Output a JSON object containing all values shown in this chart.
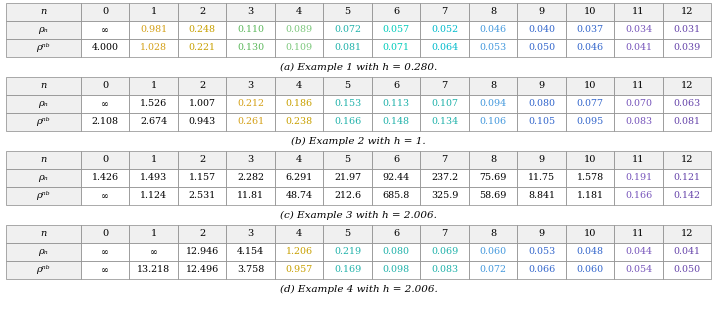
{
  "tables": [
    {
      "caption": "(a) Example 1 with h = 0.280.",
      "headers": [
        "n",
        "0",
        "1",
        "2",
        "3",
        "4",
        "5",
        "6",
        "7",
        "8",
        "9",
        "10",
        "11",
        "12"
      ],
      "rows": [
        {
          "label": "rho_n",
          "values": [
            "∞",
            "0.981",
            "0.248",
            "0.110",
            "0.089",
            "0.072",
            "0.057",
            "0.052",
            "0.046",
            "0.040",
            "0.037",
            "0.034",
            "0.031"
          ]
        },
        {
          "label": "rho_nb",
          "values": [
            "4.000",
            "1.028",
            "0.221",
            "0.130",
            "0.109",
            "0.081",
            "0.071",
            "0.064",
            "0.053",
            "0.050",
            "0.046",
            "0.041",
            "0.039"
          ]
        }
      ],
      "col_colors": [
        "#000000",
        "#D4A017",
        "#C8A000",
        "#5CB85C",
        "#7DC87D",
        "#20B2AA",
        "#00CCBB",
        "#00BBCC",
        "#4499DD",
        "#3366CC",
        "#3366CC",
        "#7755BB",
        "#6644AA"
      ]
    },
    {
      "caption": "(b) Example 2 with h = 1.",
      "headers": [
        "n",
        "0",
        "1",
        "2",
        "3",
        "4",
        "5",
        "6",
        "7",
        "8",
        "9",
        "10",
        "11",
        "12"
      ],
      "rows": [
        {
          "label": "rho_n",
          "values": [
            "∞",
            "1.526",
            "1.007",
            "0.212",
            "0.186",
            "0.153",
            "0.113",
            "0.107",
            "0.094",
            "0.080",
            "0.077",
            "0.070",
            "0.063"
          ]
        },
        {
          "label": "rho_nb",
          "values": [
            "2.108",
            "2.674",
            "0.943",
            "0.261",
            "0.238",
            "0.166",
            "0.148",
            "0.134",
            "0.106",
            "0.105",
            "0.095",
            "0.083",
            "0.081"
          ]
        }
      ],
      "col_colors": [
        "#000000",
        "#000000",
        "#000000",
        "#D4A017",
        "#C8A000",
        "#20B2AA",
        "#20B2AA",
        "#20B2AA",
        "#4499DD",
        "#3366CC",
        "#3366CC",
        "#7755BB",
        "#6644AA"
      ]
    },
    {
      "caption": "(c) Example 3 with h = 2.006.",
      "headers": [
        "n",
        "0",
        "1",
        "2",
        "3",
        "4",
        "5",
        "6",
        "7",
        "8",
        "9",
        "10",
        "11",
        "12"
      ],
      "rows": [
        {
          "label": "rho_n",
          "values": [
            "1.426",
            "1.493",
            "1.157",
            "2.282",
            "6.291",
            "21.97",
            "92.44",
            "237.2",
            "75.69",
            "11.75",
            "1.578",
            "0.191",
            "0.121"
          ]
        },
        {
          "label": "rho_nb",
          "values": [
            "∞",
            "1.124",
            "2.531",
            "11.81",
            "48.74",
            "212.6",
            "685.8",
            "325.9",
            "58.69",
            "8.841",
            "1.181",
            "0.166",
            "0.142"
          ]
        }
      ],
      "col_colors": [
        "#000000",
        "#000000",
        "#000000",
        "#000000",
        "#000000",
        "#000000",
        "#000000",
        "#000000",
        "#000000",
        "#000000",
        "#000000",
        "#7755BB",
        "#6644AA"
      ]
    },
    {
      "caption": "(d) Example 4 with h = 2.006.",
      "headers": [
        "n",
        "0",
        "1",
        "2",
        "3",
        "4",
        "5",
        "6",
        "7",
        "8",
        "9",
        "10",
        "11",
        "12"
      ],
      "rows": [
        {
          "label": "rho_n",
          "values": [
            "∞",
            "∞",
            "12.946",
            "4.154",
            "1.206",
            "0.219",
            "0.080",
            "0.069",
            "0.060",
            "0.053",
            "0.048",
            "0.044",
            "0.041"
          ]
        },
        {
          "label": "rho_nb",
          "values": [
            "∞",
            "13.218",
            "12.496",
            "3.758",
            "0.957",
            "0.169",
            "0.098",
            "0.083",
            "0.072",
            "0.066",
            "0.060",
            "0.054",
            "0.050"
          ]
        }
      ],
      "col_colors": [
        "#000000",
        "#000000",
        "#000000",
        "#000000",
        "#C8A000",
        "#20B2AA",
        "#20B2AA",
        "#20B2AA",
        "#4499DD",
        "#3366CC",
        "#3366CC",
        "#7755BB",
        "#6644AA"
      ]
    }
  ],
  "border_color": "#888888",
  "header_bg": "#f0f0f0",
  "data_bg": "#ffffff",
  "label_bg": "#f0f0f0",
  "font_size_header": 7.0,
  "font_size_data": 6.8,
  "caption_font_size": 7.5
}
